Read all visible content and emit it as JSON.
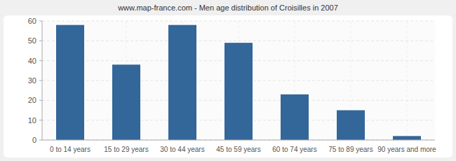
{
  "chart_data": {
    "type": "bar",
    "title": "www.map-france.com - Men age distribution of Croisilles in 2007",
    "categories": [
      "0 to 14 years",
      "15 to 29 years",
      "30 to 44 years",
      "45 to 59 years",
      "60 to 74 years",
      "75 to 89 years",
      "90 years and more"
    ],
    "values": [
      58,
      38,
      58,
      49,
      23,
      15,
      2
    ],
    "color": "#336699",
    "ylim": [
      0,
      60
    ],
    "yticks": [
      0,
      10,
      20,
      30,
      40,
      50,
      60
    ],
    "grid": true
  }
}
